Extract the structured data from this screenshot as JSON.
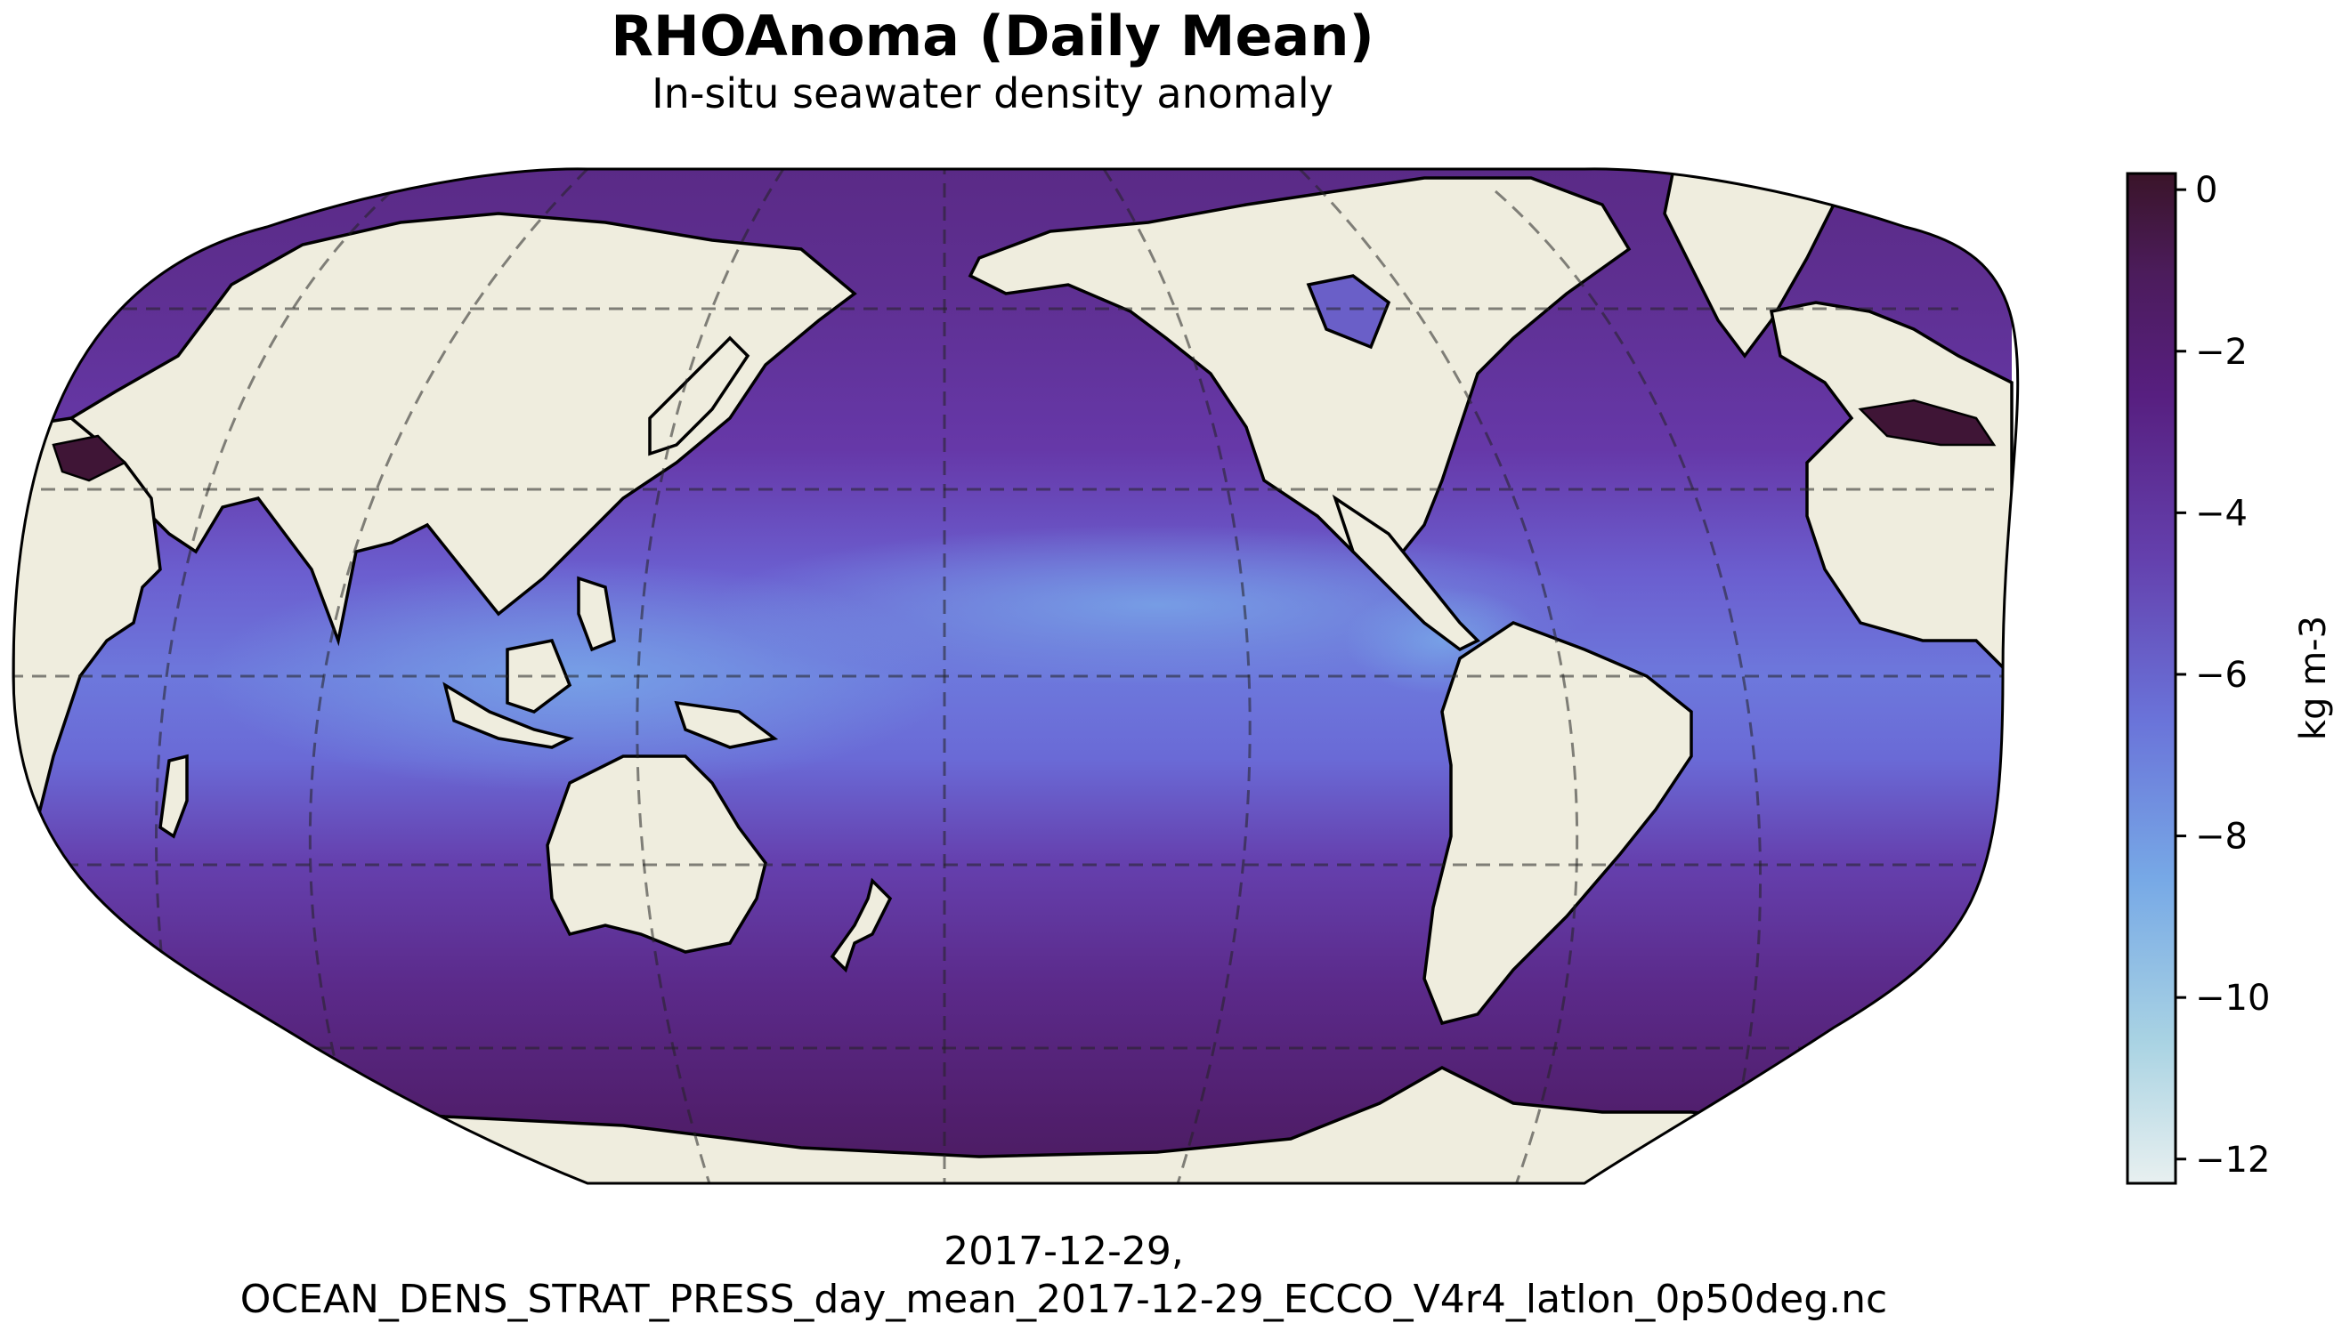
{
  "title": "RHOAnoma (Daily Mean)",
  "subtitle": "In-situ seawater density anomaly",
  "footer": {
    "date": "2017-12-29,",
    "filename": "OCEAN_DENS_STRAT_PRESS_day_mean_2017-12-29_ECCO_V4r4_latlon_0p50deg.nc"
  },
  "colorbar": {
    "label": "kg m-3",
    "min": -12.3,
    "max": 0.2,
    "ticks": [
      {
        "value": 0,
        "label": "0"
      },
      {
        "value": -2,
        "label": "−2"
      },
      {
        "value": -4,
        "label": "−4"
      },
      {
        "value": -6,
        "label": "−6"
      },
      {
        "value": -8,
        "label": "−8"
      },
      {
        "value": -10,
        "label": "−10"
      },
      {
        "value": -12,
        "label": "−12"
      }
    ],
    "colors": [
      "#e8f0f0",
      "#a9d3e3",
      "#77a9e6",
      "#6a73d9",
      "#6440ad",
      "#571f80",
      "#4c1c5c",
      "#3a1429"
    ]
  },
  "map": {
    "projection": "Robinson",
    "central_longitude": 180,
    "ocean_colormap": "dense",
    "land_color": "#efedde",
    "gridlines": "dashed"
  }
}
